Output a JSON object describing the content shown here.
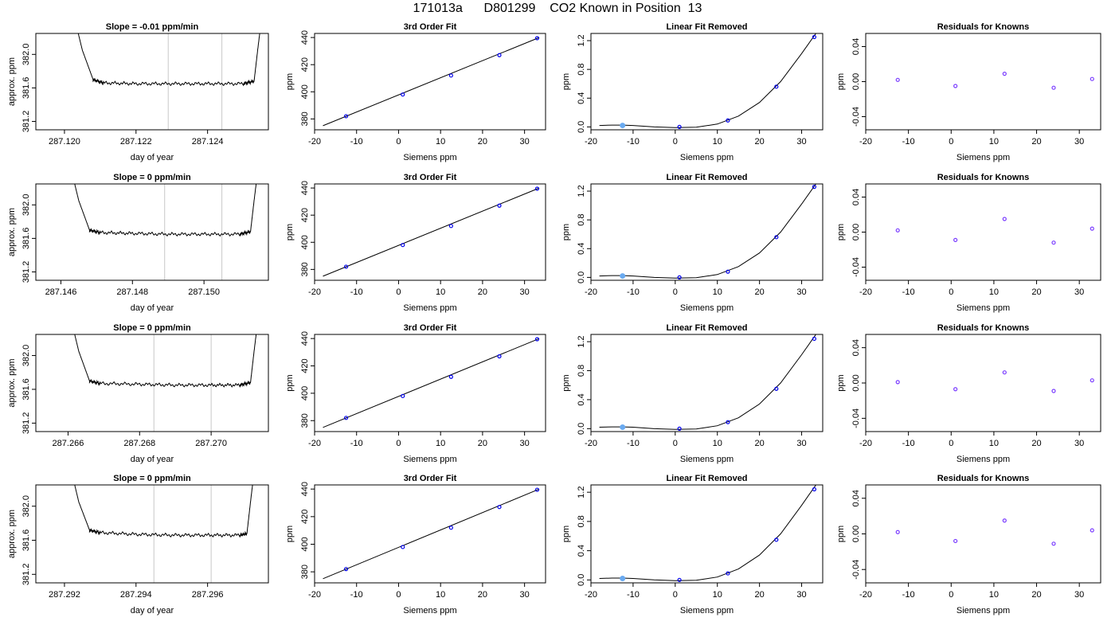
{
  "page_title": "171013a      D801299    CO2 Known in Position  13",
  "chart_data": [
    {
      "type": "line",
      "row": 0,
      "title": "Slope =  -0.01  ppm/min",
      "xlabel": "day of year",
      "ylabel": "approx. ppm",
      "xlim": [
        287.1192,
        287.1257
      ],
      "ylim": [
        381.1,
        382.25
      ],
      "xticks": [
        287.12,
        287.122,
        287.124
      ],
      "xtick_labels": [
        "287.120",
        "287.122",
        "287.124"
      ],
      "yticks": [
        381.2,
        381.6,
        382.0
      ],
      "ytick_labels": [
        "381.2",
        "381.6",
        "382.0"
      ],
      "vlines": [
        287.1229,
        287.1244
      ],
      "series": [
        {
          "x": [
            287.1203,
            287.1205,
            287.1208,
            287.1211,
            287.122,
            287.123,
            287.124,
            287.125,
            287.1253,
            287.1254,
            287.1255
          ],
          "y": [
            382.4,
            382.05,
            381.7,
            381.66,
            381.65,
            381.65,
            381.65,
            381.65,
            381.68,
            382.05,
            382.4
          ]
        }
      ]
    },
    {
      "type": "scatter",
      "row": 0,
      "title": "3rd Order Fit",
      "xlabel": "Siemens ppm",
      "ylabel": "ppm",
      "xlim": [
        -20,
        35
      ],
      "ylim": [
        372,
        443
      ],
      "xticks": [
        -20,
        -10,
        0,
        10,
        20,
        30
      ],
      "xtick_labels": [
        "-20",
        "-10",
        "0",
        "10",
        "20",
        "30"
      ],
      "yticks": [
        380,
        400,
        420,
        440
      ],
      "ytick_labels": [
        "380",
        "400",
        "420",
        "440"
      ],
      "points": [
        {
          "x": -12.5,
          "y": 382.0
        },
        {
          "x": 1.0,
          "y": 398.0
        },
        {
          "x": 12.5,
          "y": 412.0
        },
        {
          "x": 24.0,
          "y": 427.0
        },
        {
          "x": 33.0,
          "y": 439.5
        }
      ],
      "fit": {
        "x": [
          -18,
          33.5
        ],
        "y": [
          375.0,
          440.0
        ]
      }
    },
    {
      "type": "scatter",
      "row": 0,
      "title": "Linear Fit Removed",
      "xlabel": "Siemens ppm",
      "ylabel": "ppm",
      "xlim": [
        -20,
        35
      ],
      "ylim": [
        -0.04,
        1.3
      ],
      "xticks": [
        -20,
        -10,
        0,
        10,
        20,
        30
      ],
      "xtick_labels": [
        "-20",
        "-10",
        "0",
        "10",
        "20",
        "30"
      ],
      "yticks": [
        0.0,
        0.4,
        0.8,
        1.2
      ],
      "ytick_labels": [
        "0.0",
        "0.4",
        "0.8",
        "1.2"
      ],
      "points": [
        {
          "x": -12.5,
          "y": 0.02
        },
        {
          "x": 1.0,
          "y": 0.0
        },
        {
          "x": 12.5,
          "y": 0.09
        },
        {
          "x": 24.0,
          "y": 0.56
        },
        {
          "x": 33.0,
          "y": 1.25
        }
      ],
      "fit": {
        "x": [
          -18,
          -15,
          -12.5,
          -10,
          -5,
          0,
          5,
          10,
          15,
          20,
          25,
          30,
          33.5
        ],
        "y": [
          0.02,
          0.025,
          0.025,
          0.02,
          0.0,
          -0.01,
          -0.005,
          0.04,
          0.15,
          0.34,
          0.63,
          1.02,
          1.31
        ]
      }
    },
    {
      "type": "scatter",
      "row": 0,
      "title": "Residuals for Knowns",
      "xlabel": "Siemens ppm",
      "ylabel": "ppm",
      "xlim": [
        -20,
        35
      ],
      "ylim": [
        -0.055,
        0.055
      ],
      "xticks": [
        -20,
        -10,
        0,
        10,
        20,
        30
      ],
      "xtick_labels": [
        "-20",
        "-10",
        "0",
        "10",
        "20",
        "30"
      ],
      "yticks": [
        -0.04,
        0.0,
        0.04
      ],
      "ytick_labels": [
        "-0.04",
        "0.00",
        "0.04"
      ],
      "points": [
        {
          "x": -12.5,
          "y": 0.002
        },
        {
          "x": 1.0,
          "y": -0.005
        },
        {
          "x": 12.5,
          "y": 0.009
        },
        {
          "x": 24.0,
          "y": -0.007
        },
        {
          "x": 33.0,
          "y": 0.003
        }
      ]
    },
    {
      "type": "line",
      "row": 1,
      "title": "Slope =  0  ppm/min",
      "xlabel": "day of year",
      "ylabel": "approx. ppm",
      "xlim": [
        287.1453,
        287.1518
      ],
      "ylim": [
        381.1,
        382.25
      ],
      "xticks": [
        287.146,
        287.148,
        287.15
      ],
      "xtick_labels": [
        "287.146",
        "287.148",
        "287.150"
      ],
      "yticks": [
        381.2,
        381.6,
        382.0
      ],
      "ytick_labels": [
        "381.2",
        "381.6",
        "382.0"
      ],
      "vlines": [
        287.1489,
        287.1505
      ],
      "series": [
        {
          "x": [
            287.1463,
            287.1465,
            287.1468,
            287.1471,
            287.148,
            287.149,
            287.15,
            287.151,
            287.1513,
            287.1514,
            287.1515
          ],
          "y": [
            382.4,
            382.05,
            381.7,
            381.67,
            381.66,
            381.65,
            381.65,
            381.65,
            381.68,
            382.05,
            382.4
          ]
        }
      ]
    },
    {
      "type": "scatter",
      "row": 1,
      "title": "3rd Order Fit",
      "xlabel": "Siemens ppm",
      "ylabel": "ppm",
      "xlim": [
        -20,
        35
      ],
      "ylim": [
        372,
        443
      ],
      "xticks": [
        -20,
        -10,
        0,
        10,
        20,
        30
      ],
      "xtick_labels": [
        "-20",
        "-10",
        "0",
        "10",
        "20",
        "30"
      ],
      "yticks": [
        380,
        400,
        420,
        440
      ],
      "ytick_labels": [
        "380",
        "400",
        "420",
        "440"
      ],
      "points": [
        {
          "x": -12.5,
          "y": 382.0
        },
        {
          "x": 1.0,
          "y": 398.0
        },
        {
          "x": 12.5,
          "y": 412.0
        },
        {
          "x": 24.0,
          "y": 427.0
        },
        {
          "x": 33.0,
          "y": 439.5
        }
      ],
      "fit": {
        "x": [
          -18,
          33.5
        ],
        "y": [
          375.0,
          440.0
        ]
      }
    },
    {
      "type": "scatter",
      "row": 1,
      "title": "Linear Fit Removed",
      "xlabel": "Siemens ppm",
      "ylabel": "ppm",
      "xlim": [
        -20,
        35
      ],
      "ylim": [
        -0.04,
        1.3
      ],
      "xticks": [
        -20,
        -10,
        0,
        10,
        20,
        30
      ],
      "xtick_labels": [
        "-20",
        "-10",
        "0",
        "10",
        "20",
        "30"
      ],
      "yticks": [
        0.0,
        0.4,
        0.8,
        1.2
      ],
      "ytick_labels": [
        "0.0",
        "0.4",
        "0.8",
        "1.2"
      ],
      "points": [
        {
          "x": -12.5,
          "y": 0.02
        },
        {
          "x": 1.0,
          "y": 0.0
        },
        {
          "x": 12.5,
          "y": 0.08
        },
        {
          "x": 24.0,
          "y": 0.56
        },
        {
          "x": 33.0,
          "y": 1.26
        }
      ],
      "fit": {
        "x": [
          -18,
          -15,
          -12.5,
          -10,
          -5,
          0,
          5,
          10,
          15,
          20,
          25,
          30,
          33.5
        ],
        "y": [
          0.02,
          0.025,
          0.025,
          0.02,
          0.0,
          -0.01,
          -0.005,
          0.04,
          0.15,
          0.34,
          0.63,
          1.02,
          1.31
        ]
      }
    },
    {
      "type": "scatter",
      "row": 1,
      "title": "Residuals for Knowns",
      "xlabel": "Siemens ppm",
      "ylabel": "ppm",
      "xlim": [
        -20,
        35
      ],
      "ylim": [
        -0.055,
        0.055
      ],
      "xticks": [
        -20,
        -10,
        0,
        10,
        20,
        30
      ],
      "xtick_labels": [
        "-20",
        "-10",
        "0",
        "10",
        "20",
        "30"
      ],
      "yticks": [
        -0.04,
        0.0,
        0.04
      ],
      "ytick_labels": [
        "-0.04",
        "0.00",
        "0.04"
      ],
      "points": [
        {
          "x": -12.5,
          "y": 0.002
        },
        {
          "x": 1.0,
          "y": -0.009
        },
        {
          "x": 12.5,
          "y": 0.015
        },
        {
          "x": 24.0,
          "y": -0.012
        },
        {
          "x": 33.0,
          "y": 0.004
        }
      ]
    },
    {
      "type": "line",
      "row": 2,
      "title": "Slope =  0  ppm/min",
      "xlabel": "day of year",
      "ylabel": "approx. ppm",
      "xlim": [
        287.2651,
        287.2716
      ],
      "ylim": [
        381.1,
        382.25
      ],
      "xticks": [
        287.266,
        287.268,
        287.27
      ],
      "xtick_labels": [
        "287.266",
        "287.268",
        "287.270"
      ],
      "yticks": [
        381.2,
        381.6,
        382.0
      ],
      "ytick_labels": [
        "381.2",
        "381.6",
        "382.0"
      ],
      "vlines": [
        287.2684,
        287.27
      ],
      "series": [
        {
          "x": [
            287.2661,
            287.2663,
            287.2666,
            287.2669,
            287.268,
            287.269,
            287.27,
            287.2708,
            287.2711,
            287.2712,
            287.2713
          ],
          "y": [
            382.4,
            382.05,
            381.7,
            381.67,
            381.66,
            381.65,
            381.65,
            381.65,
            381.68,
            382.05,
            382.4
          ]
        }
      ]
    },
    {
      "type": "scatter",
      "row": 2,
      "title": "3rd Order Fit",
      "xlabel": "Siemens ppm",
      "ylabel": "ppm",
      "xlim": [
        -20,
        35
      ],
      "ylim": [
        372,
        443
      ],
      "xticks": [
        -20,
        -10,
        0,
        10,
        20,
        30
      ],
      "xtick_labels": [
        "-20",
        "-10",
        "0",
        "10",
        "20",
        "30"
      ],
      "yticks": [
        380,
        400,
        420,
        440
      ],
      "ytick_labels": [
        "380",
        "400",
        "420",
        "440"
      ],
      "points": [
        {
          "x": -12.5,
          "y": 382.0
        },
        {
          "x": 1.0,
          "y": 398.0
        },
        {
          "x": 12.5,
          "y": 412.0
        },
        {
          "x": 24.0,
          "y": 427.0
        },
        {
          "x": 33.0,
          "y": 439.5
        }
      ],
      "fit": {
        "x": [
          -18,
          33.5
        ],
        "y": [
          375.0,
          440.0
        ]
      }
    },
    {
      "type": "scatter",
      "row": 2,
      "title": "Linear Fit Removed",
      "xlabel": "Siemens ppm",
      "ylabel": "ppm",
      "xlim": [
        -20,
        35
      ],
      "ylim": [
        -0.04,
        1.3
      ],
      "xticks": [
        -20,
        -10,
        0,
        10,
        20,
        30
      ],
      "xtick_labels": [
        "-20",
        "-10",
        "0",
        "10",
        "20",
        "30"
      ],
      "yticks": [
        0.0,
        0.4,
        0.8,
        1.2
      ],
      "ytick_labels": [
        "0.0",
        "0.4",
        "0.8",
        "1.2"
      ],
      "points": [
        {
          "x": -12.5,
          "y": 0.02
        },
        {
          "x": 1.0,
          "y": 0.0
        },
        {
          "x": 12.5,
          "y": 0.09
        },
        {
          "x": 24.0,
          "y": 0.55
        },
        {
          "x": 33.0,
          "y": 1.24
        }
      ],
      "fit": {
        "x": [
          -18,
          -15,
          -12.5,
          -10,
          -5,
          0,
          5,
          10,
          15,
          20,
          25,
          30,
          33.5
        ],
        "y": [
          0.02,
          0.025,
          0.025,
          0.02,
          0.0,
          -0.01,
          -0.005,
          0.04,
          0.15,
          0.34,
          0.63,
          1.02,
          1.31
        ]
      }
    },
    {
      "type": "scatter",
      "row": 2,
      "title": "Residuals for Knowns",
      "xlabel": "Siemens ppm",
      "ylabel": "ppm",
      "xlim": [
        -20,
        35
      ],
      "ylim": [
        -0.055,
        0.055
      ],
      "xticks": [
        -20,
        -10,
        0,
        10,
        20,
        30
      ],
      "xtick_labels": [
        "-20",
        "-10",
        "0",
        "10",
        "20",
        "30"
      ],
      "yticks": [
        -0.04,
        0.0,
        0.04
      ],
      "ytick_labels": [
        "-0.04",
        "0.00",
        "0.04"
      ],
      "points": [
        {
          "x": -12.5,
          "y": 0.001
        },
        {
          "x": 1.0,
          "y": -0.007
        },
        {
          "x": 12.5,
          "y": 0.012
        },
        {
          "x": 24.0,
          "y": -0.009
        },
        {
          "x": 33.0,
          "y": 0.003
        }
      ]
    },
    {
      "type": "line",
      "row": 3,
      "title": "Slope =  0  ppm/min",
      "xlabel": "day of year",
      "ylabel": "approx. ppm",
      "xlim": [
        287.2912,
        287.2977
      ],
      "ylim": [
        381.1,
        382.25
      ],
      "xticks": [
        287.292,
        287.294,
        287.296
      ],
      "xtick_labels": [
        "287.292",
        "287.294",
        "287.296"
      ],
      "yticks": [
        381.2,
        381.6,
        382.0
      ],
      "ytick_labels": [
        "381.2",
        "381.6",
        "382.0"
      ],
      "vlines": [
        287.2945,
        287.2961
      ],
      "series": [
        {
          "x": [
            287.2922,
            287.2924,
            287.2927,
            287.293,
            287.294,
            287.295,
            287.296,
            287.2969,
            287.2971,
            287.2972,
            287.2973
          ],
          "y": [
            382.4,
            382.05,
            381.72,
            381.69,
            381.67,
            381.66,
            381.66,
            381.66,
            381.68,
            382.05,
            382.4
          ]
        }
      ]
    },
    {
      "type": "scatter",
      "row": 3,
      "title": "3rd Order Fit",
      "xlabel": "Siemens ppm",
      "ylabel": "ppm",
      "xlim": [
        -20,
        35
      ],
      "ylim": [
        372,
        443
      ],
      "xticks": [
        -20,
        -10,
        0,
        10,
        20,
        30
      ],
      "xtick_labels": [
        "-20",
        "-10",
        "0",
        "10",
        "20",
        "30"
      ],
      "yticks": [
        380,
        400,
        420,
        440
      ],
      "ytick_labels": [
        "380",
        "400",
        "420",
        "440"
      ],
      "points": [
        {
          "x": -12.5,
          "y": 382.0
        },
        {
          "x": 1.0,
          "y": 398.0
        },
        {
          "x": 12.5,
          "y": 412.0
        },
        {
          "x": 24.0,
          "y": 427.0
        },
        {
          "x": 33.0,
          "y": 439.5
        }
      ],
      "fit": {
        "x": [
          -18,
          33.5
        ],
        "y": [
          375.0,
          440.0
        ]
      }
    },
    {
      "type": "scatter",
      "row": 3,
      "title": "Linear Fit Removed",
      "xlabel": "Siemens ppm",
      "ylabel": "ppm",
      "xlim": [
        -20,
        35
      ],
      "ylim": [
        -0.04,
        1.3
      ],
      "xticks": [
        -20,
        -10,
        0,
        10,
        20,
        30
      ],
      "xtick_labels": [
        "-20",
        "-10",
        "0",
        "10",
        "20",
        "30"
      ],
      "yticks": [
        0.0,
        0.4,
        0.8,
        1.2
      ],
      "ytick_labels": [
        "0.0",
        "0.4",
        "0.8",
        "1.2"
      ],
      "points": [
        {
          "x": -12.5,
          "y": 0.02
        },
        {
          "x": 1.0,
          "y": 0.0
        },
        {
          "x": 12.5,
          "y": 0.09
        },
        {
          "x": 24.0,
          "y": 0.55
        },
        {
          "x": 33.0,
          "y": 1.24
        }
      ],
      "fit": {
        "x": [
          -18,
          -15,
          -12.5,
          -10,
          -5,
          0,
          5,
          10,
          15,
          20,
          25,
          30,
          33.5
        ],
        "y": [
          0.02,
          0.025,
          0.025,
          0.02,
          0.0,
          -0.01,
          -0.005,
          0.04,
          0.15,
          0.34,
          0.63,
          1.02,
          1.31
        ]
      }
    },
    {
      "type": "scatter",
      "row": 3,
      "title": "Residuals for Knowns",
      "xlabel": "Siemens ppm",
      "ylabel": "ppm",
      "xlim": [
        -20,
        35
      ],
      "ylim": [
        -0.055,
        0.055
      ],
      "xticks": [
        -20,
        -10,
        0,
        10,
        20,
        30
      ],
      "xtick_labels": [
        "-20",
        "-10",
        "0",
        "10",
        "20",
        "30"
      ],
      "yticks": [
        -0.04,
        0.0,
        0.04
      ],
      "ytick_labels": [
        "-0.04",
        "0.00",
        "0.04"
      ],
      "points": [
        {
          "x": -12.5,
          "y": 0.002
        },
        {
          "x": 1.0,
          "y": -0.008
        },
        {
          "x": 12.5,
          "y": 0.015
        },
        {
          "x": 24.0,
          "y": -0.011
        },
        {
          "x": 33.0,
          "y": 0.004
        }
      ]
    }
  ],
  "colors": {
    "axis": "#000000",
    "line": "#000000",
    "marker": "#0000ee",
    "marker_alt": "#7a3cff",
    "vline": "#c8c8c8",
    "highlight": "#6aaaf0"
  }
}
